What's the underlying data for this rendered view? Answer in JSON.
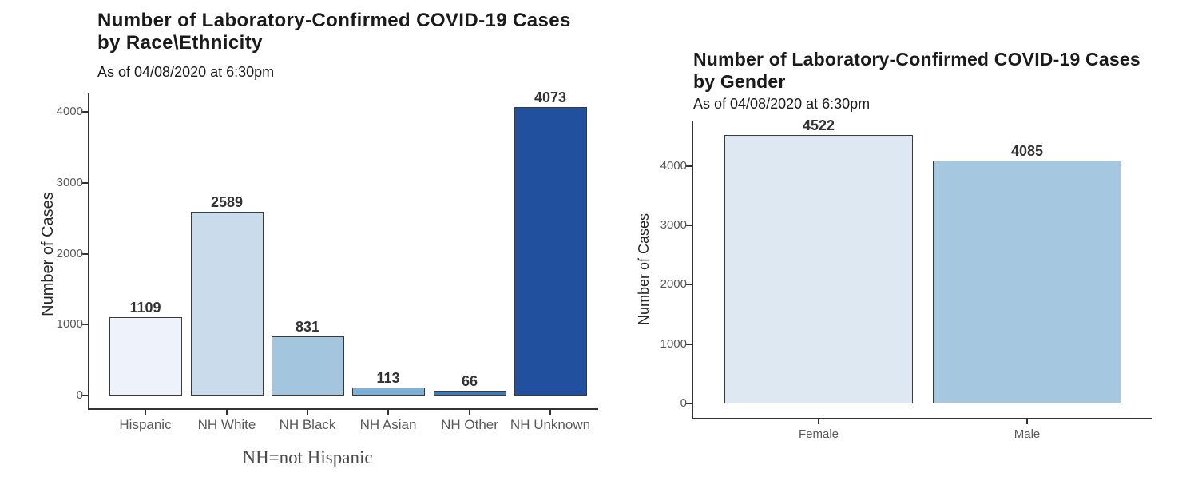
{
  "colors": {
    "background": "#ffffff",
    "axis_line": "#333333",
    "tick_label": "#595959",
    "axis_title": "#262626",
    "title": "#1a1a1a",
    "value_label": "#333333",
    "bar_border": "#3a3a3a",
    "caption": "#4a4a4a"
  },
  "chart_data": [
    {
      "type": "bar",
      "title_lines": [
        "Number of Laboratory-Confirmed COVID-19 Cases",
        "by Race\\Ethnicity"
      ],
      "subtitle": "As of 04/08/2020 at 6:30pm",
      "ylabel": "Number of Cases",
      "xlabel": "",
      "categories": [
        "Hispanic",
        "NH White",
        "NH Black",
        "NH Asian",
        "NH Other",
        "NH Unknown"
      ],
      "values": [
        1109,
        2589,
        831,
        113,
        66,
        4073
      ],
      "bar_colors": [
        "#EEF2FB",
        "#CADBEC",
        "#A3C5DD",
        "#7CB0D4",
        "#4478AE",
        "#21509E"
      ],
      "ylim": [
        0,
        4300
      ],
      "yticks": [
        0,
        1000,
        2000,
        3000,
        4000
      ],
      "grid": false,
      "legend": "none",
      "caption": "NH=not Hispanic"
    },
    {
      "type": "bar",
      "title_lines": [
        "Number of Laboratory-Confirmed COVID-19 Cases",
        "by Gender"
      ],
      "subtitle": "As of 04/08/2020 at 6:30pm",
      "ylabel": "Number of Cases",
      "xlabel": "",
      "categories": [
        "Female",
        "Male"
      ],
      "values": [
        4522,
        4085
      ],
      "bar_colors": [
        "#DEE8F2",
        "#A5C7DF"
      ],
      "ylim": [
        0,
        4750
      ],
      "yticks": [
        0,
        1000,
        2000,
        3000,
        4000
      ],
      "grid": false,
      "legend": "none",
      "caption": ""
    }
  ]
}
